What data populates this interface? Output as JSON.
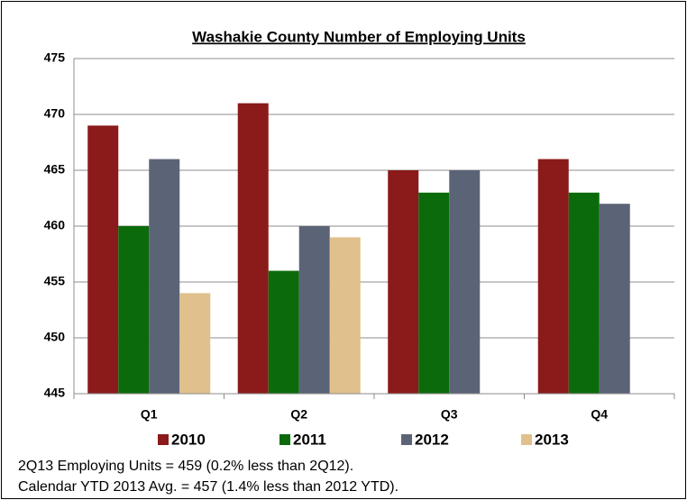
{
  "chart_data": {
    "type": "bar",
    "title": "Washakie County Number of Employing Units",
    "categories": [
      "Q1",
      "Q2",
      "Q3",
      "Q4"
    ],
    "series": [
      {
        "name": "2010",
        "color": "#8b1a1a",
        "values": [
          469,
          471,
          465,
          466
        ]
      },
      {
        "name": "2011",
        "color": "#0b6b0b",
        "values": [
          460,
          456,
          463,
          463
        ]
      },
      {
        "name": "2012",
        "color": "#5b6377",
        "values": [
          466,
          460,
          465,
          462
        ]
      },
      {
        "name": "2013",
        "color": "#e0c08c",
        "values": [
          454,
          459,
          null,
          null
        ]
      }
    ],
    "ylim": [
      445,
      475
    ],
    "yticks": [
      445,
      450,
      455,
      460,
      465,
      470,
      475
    ],
    "grid": true,
    "notes": [
      "2Q13 Employing Units = 459 (0.2% less than 2Q12).",
      "Calendar YTD 2013 Avg. = 457 (1.4% less than 2012 YTD)."
    ]
  }
}
